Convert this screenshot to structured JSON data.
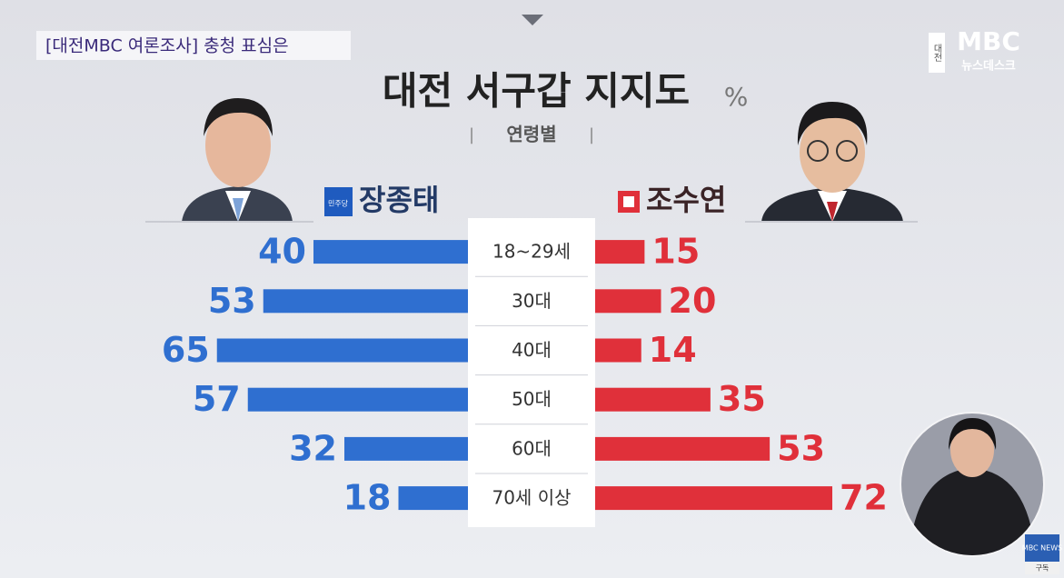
{
  "header": {
    "caption": "[대전MBC 여론조사] 충청 표심은",
    "logo_region": "대전",
    "logo_brand": "MBC",
    "logo_program": "뉴스데스크"
  },
  "chart_data": {
    "type": "butterfly",
    "title": "대전 서구갑 지지도",
    "unit": "%",
    "subtitle": "연령별",
    "categories": [
      "18~29세",
      "30대",
      "40대",
      "50대",
      "60대",
      "70세 이상"
    ],
    "xlim": [
      0,
      80
    ],
    "series": [
      {
        "name": "장종태",
        "party": "민주당",
        "color": "#2f6fd0",
        "values": [
          40,
          53,
          65,
          57,
          32,
          18
        ]
      },
      {
        "name": "조수연",
        "color": "#e0303a",
        "values": [
          15,
          20,
          14,
          35,
          53,
          72
        ]
      }
    ]
  },
  "overlay": {
    "badge": "MBC NEWS",
    "subscribe": "구독"
  }
}
